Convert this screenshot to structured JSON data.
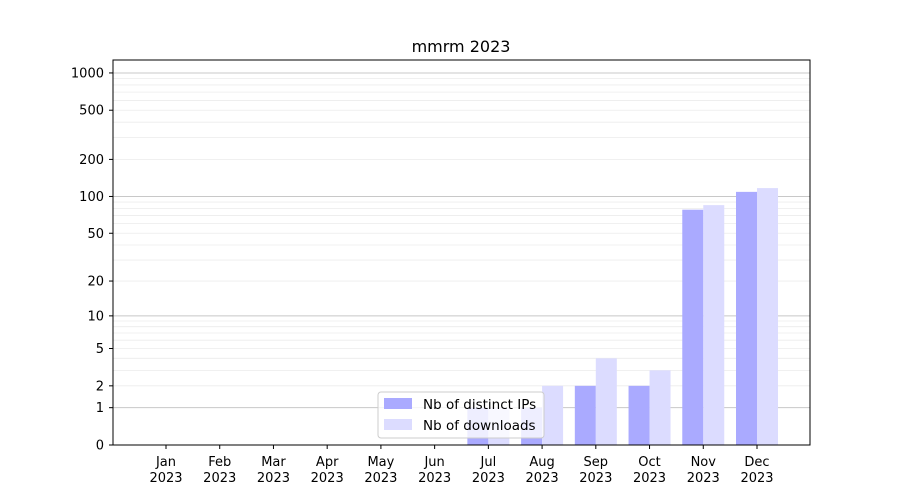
{
  "chart_data": {
    "type": "bar",
    "title": "mmrm 2023",
    "xlabel": "",
    "ylabel": "",
    "yscale": "log(1+y)",
    "ylim": [
      0,
      1200
    ],
    "yticks": [
      0,
      1,
      2,
      5,
      10,
      20,
      50,
      100,
      200,
      500,
      1000
    ],
    "grid": true,
    "legend_position": "bottom-center",
    "categories": [
      "Jan\n2023",
      "Feb\n2023",
      "Mar\n2023",
      "Apr\n2023",
      "May\n2023",
      "Jun\n2023",
      "Jul\n2023",
      "Aug\n2023",
      "Sep\n2023",
      "Oct\n2023",
      "Nov\n2023",
      "Dec\n2023"
    ],
    "series": [
      {
        "name": "Nb of distinct IPs",
        "color": "#aaaaff",
        "values": [
          0,
          0,
          0,
          0,
          0,
          0,
          1,
          1,
          2,
          2,
          78,
          109
        ]
      },
      {
        "name": "Nb of downloads",
        "color": "#dcdcff",
        "values": [
          0,
          0,
          0,
          0,
          0,
          0,
          1,
          2,
          4,
          3,
          85,
          117
        ]
      }
    ]
  }
}
